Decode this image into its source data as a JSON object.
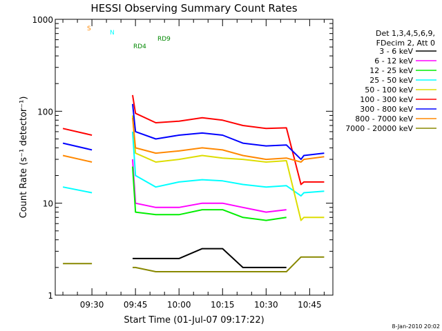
{
  "chart_data": {
    "type": "line",
    "title": "HESSI Observing Summary Count Rates",
    "xlabel": "Start Time (01-Jul-07 09:17:22)",
    "ylabel": "Count Rate (s⁻¹ detector⁻¹)",
    "yscale": "log",
    "ylim": [
      1,
      1000
    ],
    "xlim": [
      "09:17:22",
      "10:53:00"
    ],
    "x_ticks": [
      "09:30",
      "09:45",
      "10:00",
      "10:15",
      "10:30",
      "10:45"
    ],
    "y_ticks": [
      "1",
      "10",
      "100",
      "1000"
    ],
    "legend_header": [
      "Det 1,3,4,5,6,9,",
      "FDecim 2, Att 0"
    ],
    "timestamp": "8-Jan-2010 20:02",
    "legend_position": "right",
    "x": [
      "09:20",
      "09:30",
      "09:31",
      "09:44",
      "09:45",
      "09:52",
      "10:00",
      "10:08",
      "10:15",
      "10:22",
      "10:30",
      "10:37",
      "10:42",
      "10:43",
      "10:50"
    ],
    "series": [
      {
        "name": "3 - 6 keV",
        "color": "#000000",
        "values": [
          null,
          null,
          null,
          2.5,
          2.5,
          2.5,
          2.5,
          3.2,
          3.2,
          2.0,
          2.0,
          2.0,
          null,
          null,
          null
        ]
      },
      {
        "name": "6 - 12 keV",
        "color": "#ff00ff",
        "values": [
          null,
          null,
          null,
          30,
          10,
          9,
          9,
          10,
          10,
          9,
          8,
          8.5,
          null,
          null,
          null
        ]
      },
      {
        "name": "12 - 25 keV",
        "color": "#00ee00",
        "values": [
          null,
          null,
          null,
          25,
          8,
          7.5,
          7.5,
          8.5,
          8.5,
          7,
          6.5,
          7,
          null,
          null,
          null
        ]
      },
      {
        "name": "25 - 50 keV",
        "color": "#00ffff",
        "values": [
          15,
          13,
          null,
          60,
          20,
          15,
          17,
          18,
          17.5,
          16,
          15,
          15.5,
          12,
          13,
          13.5
        ]
      },
      {
        "name": "50 - 100 keV",
        "color": "#dddd00",
        "values": [
          null,
          null,
          null,
          90,
          35,
          28,
          30,
          33,
          31,
          30,
          28,
          29,
          6.5,
          7,
          7
        ]
      },
      {
        "name": "100 - 300 keV",
        "color": "#ff0000",
        "values": [
          65,
          55,
          null,
          150,
          95,
          75,
          78,
          85,
          80,
          70,
          65,
          66,
          16,
          17,
          17
        ]
      },
      {
        "name": "300 - 800 keV",
        "color": "#0000ff",
        "values": [
          45,
          38,
          null,
          120,
          60,
          50,
          55,
          58,
          55,
          45,
          42,
          43,
          30,
          33,
          35
        ]
      },
      {
        "name": "800 - 7000 keV",
        "color": "#ff8800",
        "values": [
          33,
          28,
          null,
          85,
          40,
          35,
          37,
          40,
          38,
          33,
          30,
          31,
          28,
          30,
          32
        ]
      },
      {
        "name": "7000 - 20000 keV",
        "color": "#888800",
        "values": [
          2.2,
          2.2,
          null,
          2.0,
          2.0,
          1.8,
          1.8,
          1.8,
          1.8,
          1.8,
          1.8,
          1.8,
          2.6,
          2.6,
          2.6
        ]
      }
    ],
    "flag_labels": [
      {
        "text": "S",
        "color": "#ff8800"
      },
      {
        "text": "N",
        "color": "#00ffff"
      },
      {
        "text": "RD4",
        "color": "#008800"
      },
      {
        "text": "RD9",
        "color": "#008800"
      }
    ]
  }
}
